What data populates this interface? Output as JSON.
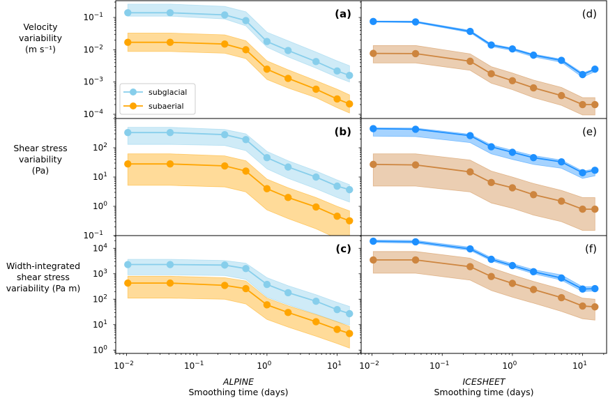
{
  "chart_data": {
    "type": "line",
    "title": "",
    "xscale": "log",
    "yscale": "log",
    "x": [
      0.0104,
      0.0417,
      0.25,
      0.5,
      1,
      2,
      5,
      10,
      15
    ],
    "xlim": [
      0.007,
      22
    ],
    "xticks": [
      {
        "value": 0.01,
        "base": "10",
        "exp": "−2"
      },
      {
        "value": 0.1,
        "base": "10",
        "exp": "−1"
      },
      {
        "value": 1,
        "base": "10",
        "exp": "0"
      },
      {
        "value": 10,
        "base": "10",
        "exp": "1"
      }
    ],
    "columns": [
      {
        "id": "alpine",
        "site": "ALPINE",
        "xlabel": "Smoothing time (days)"
      },
      {
        "id": "icesheet",
        "site": "ICESHEET",
        "xlabel": "Smoothing time (days)"
      }
    ],
    "rows": [
      {
        "id": "velocity",
        "ylabel": [
          "Velocity",
          "variability",
          "(m s⁻¹)"
        ],
        "ylim_exp": [
          -4.13,
          -0.48
        ],
        "yticks": [
          {
            "exp": -1,
            "label": "−1"
          },
          {
            "exp": -2,
            "label": "−2"
          },
          {
            "exp": -3,
            "label": "−3"
          },
          {
            "exp": -4,
            "label": "−4"
          }
        ]
      },
      {
        "id": "shear",
        "ylabel": [
          "Shear stress",
          "variability",
          "(Pa)"
        ],
        "ylim_exp": [
          -1,
          3.0
        ],
        "yticks": [
          {
            "exp": 2,
            "label": "2"
          },
          {
            "exp": 1,
            "label": "1"
          },
          {
            "exp": 0,
            "label": "0"
          },
          {
            "exp": -1,
            "label": "−1"
          }
        ]
      },
      {
        "id": "width",
        "ylabel": [
          "Width-integrated",
          "shear stress",
          "variability (Pa m)"
        ],
        "ylim_exp": [
          -0.13,
          4.5
        ],
        "yticks": [
          {
            "exp": 4,
            "label": "4"
          },
          {
            "exp": 3,
            "label": "3"
          },
          {
            "exp": 2,
            "label": "2"
          },
          {
            "exp": 1,
            "label": "1"
          },
          {
            "exp": 0,
            "label": "0"
          }
        ]
      }
    ],
    "legend": {
      "placement": "lower-left",
      "panel": "a",
      "entries": [
        {
          "name": "subglacial",
          "color": "#87CEEB"
        },
        {
          "name": "subaerial",
          "color": "#FFA500"
        }
      ]
    },
    "panels": [
      {
        "label": "(a)",
        "bold": true,
        "row": 0,
        "col": 0,
        "series": [
          {
            "name": "subglacial",
            "color": "#87CEEB",
            "band_alpha": 0.4,
            "values": [
              0.14,
              0.14,
              0.12,
              0.08,
              0.018,
              0.0095,
              0.0043,
              0.0022,
              0.0016
            ],
            "upper": [
              0.26,
              0.26,
              0.22,
              0.15,
              0.035,
              0.019,
              0.0085,
              0.0045,
              0.0032
            ],
            "lower": [
              0.11,
              0.11,
              0.09,
              0.055,
              0.012,
              0.006,
              0.0027,
              0.0014,
              0.001
            ]
          },
          {
            "name": "subaerial",
            "color": "#FFA500",
            "band_alpha": 0.4,
            "values": [
              0.017,
              0.017,
              0.015,
              0.01,
              0.0025,
              0.0013,
              0.0006,
              0.0003,
              0.00021
            ],
            "upper": [
              0.033,
              0.033,
              0.029,
              0.019,
              0.0045,
              0.0024,
              0.0011,
              0.0006,
              0.0004
            ],
            "lower": [
              0.0088,
              0.0088,
              0.0078,
              0.0053,
              0.0012,
              0.00065,
              0.00033,
              0.00016,
              0.00011
            ]
          }
        ]
      },
      {
        "label": "(d)",
        "bold": false,
        "row": 0,
        "col": 1,
        "series": [
          {
            "name": "subglacial",
            "color": "#1E90FF",
            "band_alpha": 0.4,
            "values": [
              0.075,
              0.073,
              0.037,
              0.014,
              0.0106,
              0.0068,
              0.0047,
              0.0017,
              0.0025
            ],
            "upper": [
              0.078,
              0.077,
              0.04,
              0.015,
              0.0113,
              0.0073,
              0.0051,
              0.0019,
              0.0026
            ],
            "lower": [
              0.072,
              0.069,
              0.034,
              0.0125,
              0.0095,
              0.006,
              0.0041,
              0.0014,
              0.0021
            ]
          },
          {
            "name": "subaerial",
            "color": "#CD853F",
            "band_alpha": 0.4,
            "values": [
              0.0077,
              0.0076,
              0.0044,
              0.0018,
              0.0011,
              0.00066,
              0.00038,
              0.0002,
              0.0002
            ],
            "upper": [
              0.0135,
              0.0135,
              0.0075,
              0.003,
              0.0019,
              0.00115,
              0.00068,
              0.00033,
              0.00033
            ],
            "lower": [
              0.0039,
              0.0039,
              0.0023,
              0.00092,
              0.00058,
              0.00033,
              0.00019,
              9.5e-05,
              9.5e-05
            ]
          }
        ]
      },
      {
        "label": "(b)",
        "bold": true,
        "row": 1,
        "col": 0,
        "series": [
          {
            "name": "subglacial",
            "color": "#87CEEB",
            "band_alpha": 0.4,
            "values": [
              330,
              330,
              280,
              190,
              46,
              22,
              10,
              4.9,
              3.7
            ],
            "upper": [
              500,
              500,
              420,
              300,
              75,
              36,
              16,
              8,
              5.5
            ],
            "lower": [
              130,
              130,
              120,
              80,
              19,
              9,
              4,
              2,
              1.4
            ]
          },
          {
            "name": "subaerial",
            "color": "#FFA500",
            "band_alpha": 0.4,
            "values": [
              28,
              28,
              24,
              16,
              4.0,
              2.0,
              0.95,
              0.46,
              0.32
            ],
            "upper": [
              62,
              62,
              53,
              36,
              8.5,
              4.3,
              2.0,
              1.0,
              0.7
            ],
            "lower": [
              5.2,
              5.2,
              4.6,
              3.1,
              0.75,
              0.38,
              0.17,
              0.08,
              0.06
            ]
          }
        ]
      },
      {
        "label": "(e)",
        "bold": false,
        "row": 1,
        "col": 1,
        "series": [
          {
            "name": "subglacial",
            "color": "#1E90FF",
            "band_alpha": 0.4,
            "values": [
              450,
              430,
              260,
              108,
              70,
              46,
              33,
              14,
              17
            ],
            "upper": [
              480,
              470,
              290,
              125,
              82,
              54,
              38,
              16,
              19
            ],
            "lower": [
              250,
              240,
              150,
              62,
              40,
              27,
              20,
              9,
              11
            ]
          },
          {
            "name": "subaerial",
            "color": "#CD853F",
            "band_alpha": 0.4,
            "values": [
              27,
              26,
              15,
              6.5,
              4.3,
              2.5,
              1.5,
              0.8,
              0.8
            ],
            "upper": [
              62,
              62,
              38,
              16,
              10,
              6,
              3.5,
              2.0,
              2.0
            ],
            "lower": [
              4.9,
              4.9,
              3.1,
              1.3,
              0.86,
              0.5,
              0.3,
              0.15,
              0.15
            ]
          }
        ]
      },
      {
        "label": "(c)",
        "bold": true,
        "row": 2,
        "col": 0,
        "series": [
          {
            "name": "subglacial",
            "color": "#87CEEB",
            "band_alpha": 0.4,
            "values": [
              2300,
              2300,
              2200,
              1600,
              380,
              180,
              83,
              39,
              27
            ],
            "upper": [
              3700,
              3700,
              3300,
              2600,
              700,
              340,
              150,
              75,
              52
            ],
            "lower": [
              900,
              900,
              850,
              600,
              120,
              60,
              26,
              13,
              9.5
            ]
          },
          {
            "name": "subaerial",
            "color": "#FFA500",
            "band_alpha": 0.4,
            "values": [
              430,
              430,
              350,
              260,
              60,
              30,
              13,
              6.5,
              4.5
            ],
            "upper": [
              800,
              800,
              700,
              520,
              110,
              55,
              25,
              13,
              8.5
            ],
            "lower": [
              110,
              110,
              100,
              65,
              16,
              8,
              3.5,
              1.8,
              1.2
            ]
          }
        ]
      },
      {
        "label": "(f)",
        "bold": false,
        "row": 2,
        "col": 1,
        "series": [
          {
            "name": "subglacial",
            "color": "#1E90FF",
            "band_alpha": 0.4,
            "values": [
              19000,
              18000,
              9500,
              3700,
              2100,
              1200,
              680,
              250,
              260
            ],
            "upper": [
              21000,
              20500,
              11000,
              4300,
              2500,
              1450,
              900,
              310,
              310
            ],
            "lower": [
              17000,
              16000,
              8300,
              3200,
              1800,
              1000,
              560,
              200,
              210
            ]
          },
          {
            "name": "subaerial",
            "color": "#CD853F",
            "band_alpha": 0.4,
            "values": [
              3500,
              3500,
              1900,
              780,
              420,
              240,
              115,
              54,
              50
            ],
            "upper": [
              7500,
              7500,
              4100,
              1700,
              900,
              500,
              250,
              110,
              100
            ],
            "lower": [
              1050,
              1050,
              560,
              220,
              120,
              70,
              33,
              17,
              15
            ]
          }
        ]
      }
    ]
  }
}
